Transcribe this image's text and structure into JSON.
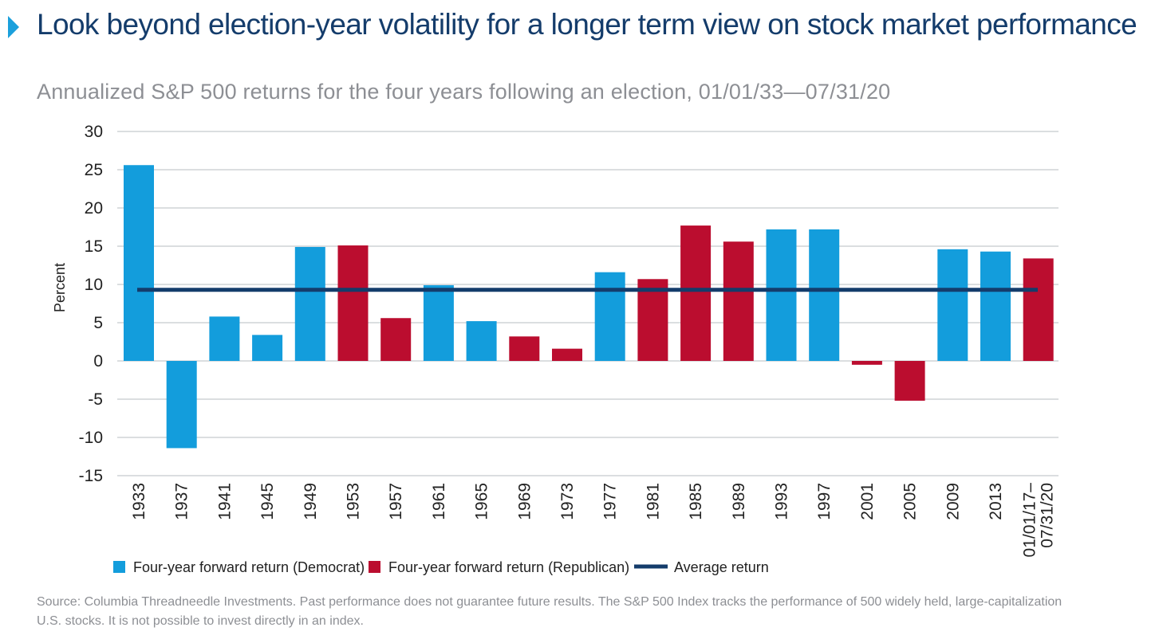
{
  "title": "Look beyond election-year volatility for a longer term view on stock market performance",
  "subtitle": "Annualized S&P 500 returns for the four years following an election, 01/01/33—07/31/20",
  "source": "Source: Columbia Threadneedle Investments. Past performance does not guarantee future results. The S&P 500 Index tracks the performance of 500 widely held, large-capitalization U.S. stocks. It is not possible to invest directly in an index.",
  "colors": {
    "democrat": "#139ddc",
    "republican": "#bb0d2f",
    "average": "#143c6b",
    "grid": "#cfd3d6",
    "axis_text": "#222222"
  },
  "chart_data": {
    "type": "bar",
    "ylabel": "Percent",
    "xlabel": "",
    "ylim": [
      -15,
      30
    ],
    "yticks": [
      30,
      25,
      20,
      15,
      10,
      5,
      0,
      -5,
      -10,
      -15
    ],
    "grid": true,
    "legend_position": "bottom",
    "categories": [
      "1933",
      "1937",
      "1941",
      "1945",
      "1949",
      "1953",
      "1957",
      "1961",
      "1965",
      "1969",
      "1973",
      "1977",
      "1981",
      "1985",
      "1989",
      "1993",
      "1997",
      "2001",
      "2005",
      "2009",
      "2013",
      "01/01/17–\n07/31/20"
    ],
    "values": [
      25.6,
      -11.4,
      5.8,
      3.4,
      14.9,
      15.1,
      5.6,
      9.9,
      5.2,
      3.2,
      1.6,
      11.6,
      10.7,
      17.7,
      15.6,
      17.2,
      17.2,
      -0.5,
      -5.2,
      14.6,
      14.3,
      13.4
    ],
    "party": [
      "Democrat",
      "Democrat",
      "Democrat",
      "Democrat",
      "Democrat",
      "Republican",
      "Republican",
      "Democrat",
      "Democrat",
      "Republican",
      "Republican",
      "Democrat",
      "Republican",
      "Republican",
      "Republican",
      "Democrat",
      "Democrat",
      "Republican",
      "Republican",
      "Democrat",
      "Democrat",
      "Republican"
    ],
    "average_return": 9.3,
    "legend": [
      {
        "key": "democrat",
        "label": "Four-year forward return (Democrat)"
      },
      {
        "key": "republican",
        "label": "Four-year forward return (Republican)"
      },
      {
        "key": "average",
        "label": "Average return"
      }
    ]
  }
}
